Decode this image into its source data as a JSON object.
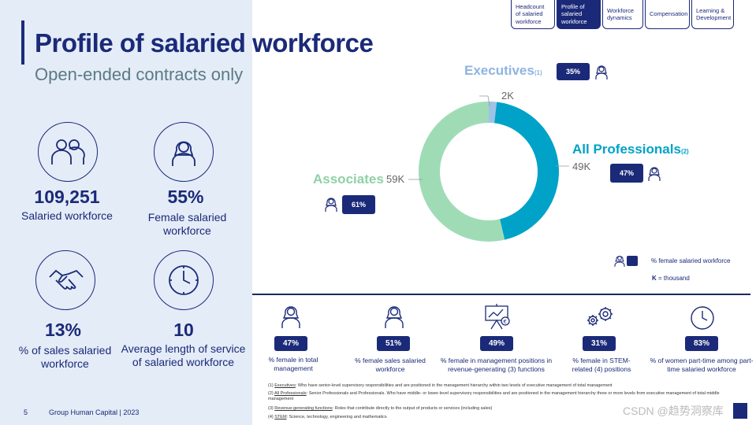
{
  "header": {
    "title": "Profile of salaried workforce",
    "subtitle": "Open-ended contracts only"
  },
  "tabs": [
    {
      "label": "Headcount of salaried workforce",
      "active": false
    },
    {
      "label": "Profile of salaried workforce",
      "active": true
    },
    {
      "label": "Workforce dynamics",
      "active": false
    },
    {
      "label": "Compensation",
      "active": false
    },
    {
      "label": "Learning & Development",
      "active": false
    }
  ],
  "kpis": [
    {
      "icon": "people-icon",
      "value": "109,251",
      "label": "Salaried workforce"
    },
    {
      "icon": "female-icon",
      "value": "55%",
      "label": "Female salaried workforce"
    },
    {
      "icon": "handshake-icon",
      "value": "13%",
      "label": "% of sales salaried workforce"
    },
    {
      "icon": "clock-icon",
      "value": "10",
      "label": "Average length of service of salaried workforce"
    }
  ],
  "chart_data": {
    "type": "pie",
    "style": "donut",
    "categories": [
      "Executives",
      "All Professionals",
      "Associates"
    ],
    "values": [
      2,
      49,
      59
    ],
    "value_labels": [
      "2K",
      "49K",
      "59K"
    ],
    "colors": [
      "#9ec3e6",
      "#00a2c7",
      "#9fdcb6"
    ],
    "female_share": [
      "35%",
      "47%",
      "61%"
    ],
    "footnote_refs": [
      "(1)",
      "(2)",
      ""
    ]
  },
  "legend": {
    "female_label": "% female salaried workforce",
    "k_bold": "K",
    "k_rest": " = thousand"
  },
  "stats": [
    {
      "icon": "female-icon",
      "value": "47%",
      "label": "% female in total management"
    },
    {
      "icon": "female-icon",
      "value": "51%",
      "label": "% female sales salaried workforce"
    },
    {
      "icon": "presentation-chart-icon",
      "value": "49%",
      "label": "% female in management positions in revenue-generating (3) functions"
    },
    {
      "icon": "gears-icon",
      "value": "31%",
      "label": "% female in STEM-related (4) positions"
    },
    {
      "icon": "clock-icon",
      "value": "83%",
      "label": "% of women part-time among part-time salaried workforce"
    }
  ],
  "footnotes": [
    {
      "num": "(1)",
      "term": "Executives",
      "text": ": Who have senior-level supervisory responsibilities and are positioned in the management hierarchy within  two levels of executive management of total management"
    },
    {
      "num": "(2)",
      "term": "All Professionals",
      "text": ": Senior Professionals and Professionals. Who have middle- or lower-level supervisory responsibilities and are positioned in the management hierarchy three or more levels from executive management of total middle management"
    },
    {
      "num": "(3)",
      "term": "Revenue-generating functions",
      "text": ": Roles that contribute directly to the output of products or services (including sales)"
    },
    {
      "num": "(4)",
      "term": "STEM",
      "text": ": Science, technology, engineering and mathematics"
    }
  ],
  "footer": {
    "page": "5",
    "text": "Group Human Capital | 2023"
  },
  "watermark": "CSDN @趋势洞察库"
}
